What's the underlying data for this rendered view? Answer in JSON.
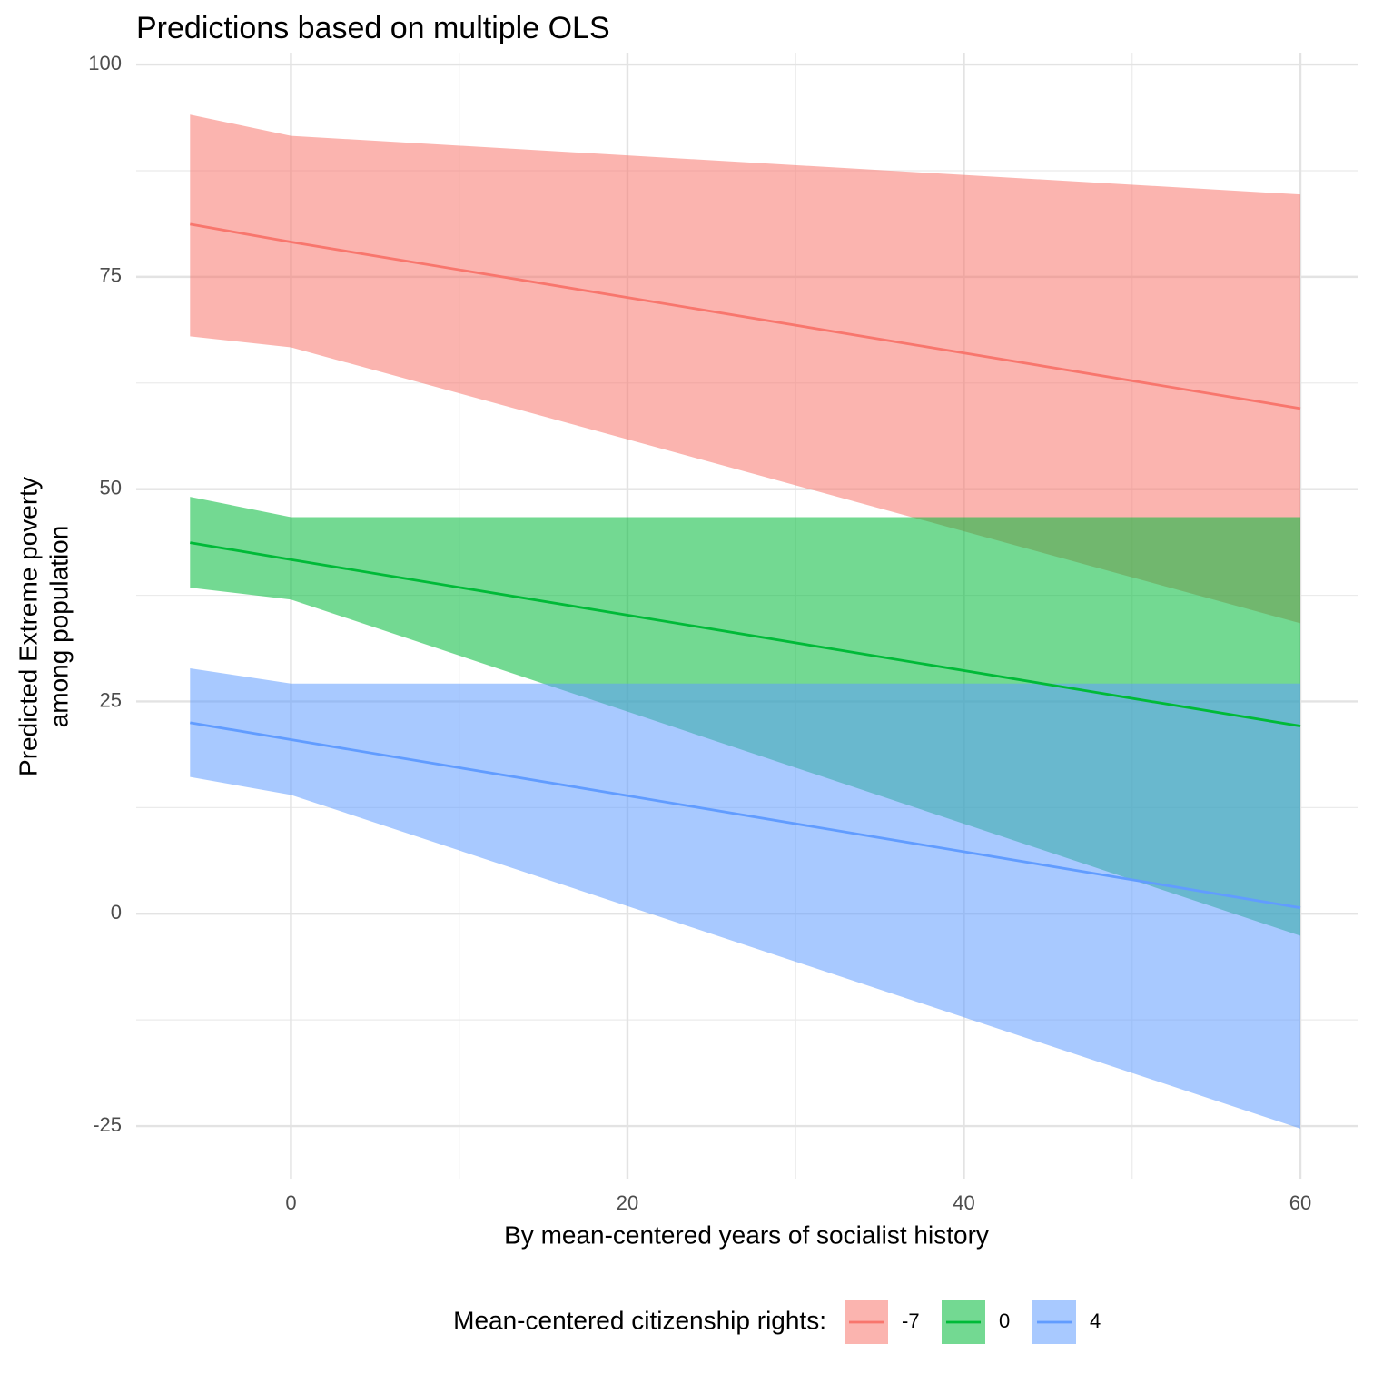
{
  "chart_data": {
    "type": "ribbon_line",
    "title": "Predictions based on multiple OLS",
    "x_label": "By mean-centered years of socialist history",
    "y_label": [
      "Predicted Extreme poverty",
      "among population"
    ],
    "legend_title": "Mean-centered citizenship rights:",
    "legend_position": "bottom",
    "grid": true,
    "minor_grid": true,
    "x": [
      -6,
      0,
      60
    ],
    "xlim": [
      -9.2,
      63.4
    ],
    "xticks": [
      0,
      20,
      40,
      60
    ],
    "ylim": [
      -31.2,
      101.4
    ],
    "yticks": [
      -25,
      0,
      25,
      50,
      75,
      100
    ],
    "series": [
      {
        "name": "-7",
        "color": "#F8766D",
        "values": [
          81.2,
          79.1,
          59.5
        ],
        "lower": [
          68.0,
          66.7,
          34.2
        ],
        "upper": [
          94.1,
          91.6,
          84.7
        ]
      },
      {
        "name": "0",
        "color": "#00BA38",
        "values": [
          43.7,
          41.7,
          22.1
        ],
        "lower": [
          38.4,
          37.0,
          -2.6
        ],
        "upper": [
          49.1,
          46.7,
          46.7
        ]
      },
      {
        "name": "4",
        "color": "#619CFF",
        "values": [
          22.5,
          20.5,
          0.7
        ],
        "lower": [
          16.1,
          14.0,
          -25.3
        ],
        "upper": [
          28.9,
          27.1,
          27.1
        ]
      }
    ]
  }
}
